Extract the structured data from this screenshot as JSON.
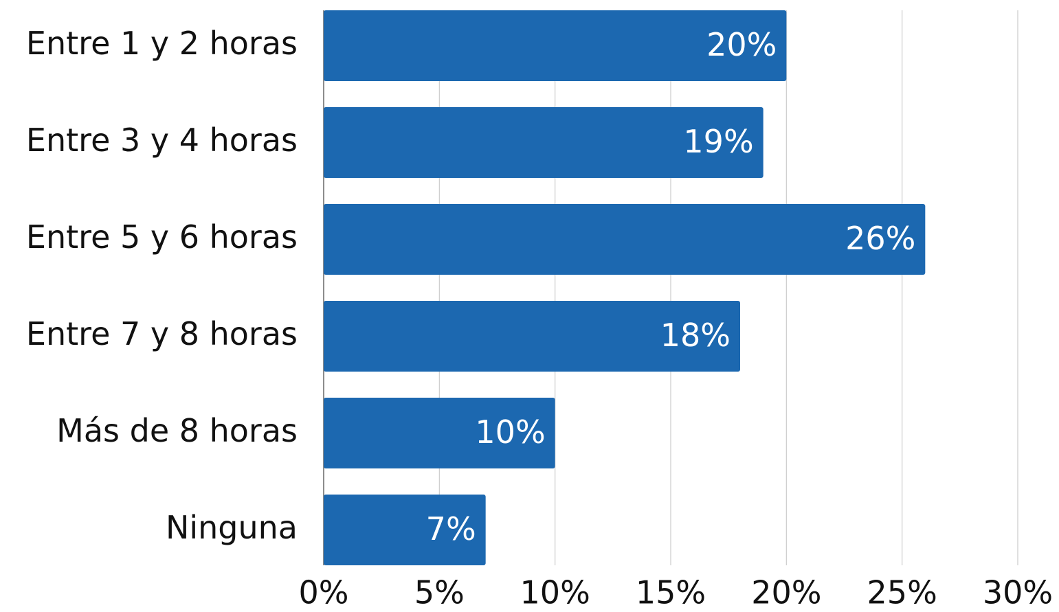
{
  "chart_data": {
    "type": "bar",
    "orientation": "horizontal",
    "categories": [
      "Entre 1 y 2 horas",
      "Entre 3 y 4 horas",
      "Entre 5 y 6 horas",
      "Entre 7 y 8 horas",
      "Más de 8 horas",
      "Ninguna"
    ],
    "values": [
      20,
      19,
      26,
      18,
      10,
      7
    ],
    "value_labels": [
      "20%",
      "19%",
      "26%",
      "18%",
      "10%",
      "7%"
    ],
    "color": "#1c68b0",
    "xlim": [
      0,
      30
    ],
    "xticks": [
      {
        "value": 0,
        "label": "0%"
      },
      {
        "value": 5,
        "label": "5%"
      },
      {
        "value": 10,
        "label": "10%"
      },
      {
        "value": 15,
        "label": "15%"
      },
      {
        "value": 20,
        "label": "20%"
      },
      {
        "value": 25,
        "label": "25%"
      },
      {
        "value": 30,
        "label": "30%"
      }
    ],
    "grid": true
  }
}
